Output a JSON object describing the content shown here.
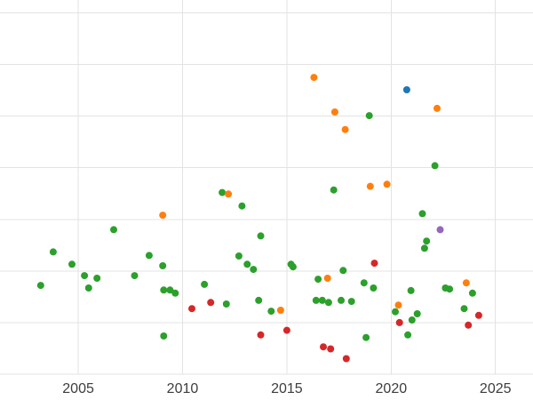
{
  "chart_data": {
    "type": "scatter",
    "title": "",
    "xlabel": "",
    "ylabel": "",
    "xlim": [
      2001.25,
      2026.8
    ],
    "ylim": [
      -0.5,
      7.25
    ],
    "xticks": [
      {
        "value": 2005,
        "label": "2005"
      },
      {
        "value": 2010,
        "label": "2010"
      },
      {
        "value": 2015,
        "label": "2015"
      },
      {
        "value": 2020,
        "label": "2020"
      },
      {
        "value": 2025,
        "label": "2025"
      }
    ],
    "ygrid": [
      0,
      1,
      2,
      3,
      4,
      5,
      6,
      7
    ],
    "grid": true,
    "grid_color": "#e3e3e3",
    "tick_color": "#3d3d3d",
    "tick_font_size": 16,
    "marker_radius": 4,
    "legend_position": "none",
    "series": [
      {
        "name": "green",
        "color": "#2ca02c",
        "points": [
          [
            2003.2,
            1.72
          ],
          [
            2003.8,
            2.37
          ],
          [
            2004.7,
            2.13
          ],
          [
            2005.3,
            1.91
          ],
          [
            2005.5,
            1.67
          ],
          [
            2005.9,
            1.86
          ],
          [
            2006.7,
            2.8
          ],
          [
            2007.7,
            1.91
          ],
          [
            2008.4,
            2.3
          ],
          [
            2009.05,
            2.1
          ],
          [
            2009.1,
            1.63
          ],
          [
            2009.4,
            1.63
          ],
          [
            2009.65,
            1.57
          ],
          [
            2009.1,
            0.74
          ],
          [
            2011.05,
            1.74
          ],
          [
            2011.9,
            3.52
          ],
          [
            2012.1,
            1.36
          ],
          [
            2012.7,
            2.29
          ],
          [
            2012.85,
            3.26
          ],
          [
            2013.1,
            2.13
          ],
          [
            2013.4,
            2.03
          ],
          [
            2013.65,
            1.43
          ],
          [
            2013.75,
            2.68
          ],
          [
            2014.25,
            1.22
          ],
          [
            2015.2,
            2.13
          ],
          [
            2015.3,
            2.08
          ],
          [
            2016.4,
            1.43
          ],
          [
            2016.5,
            1.84
          ],
          [
            2016.7,
            1.43
          ],
          [
            2017.0,
            1.39
          ],
          [
            2017.25,
            3.57
          ],
          [
            2017.6,
            1.43
          ],
          [
            2017.7,
            2.01
          ],
          [
            2018.1,
            1.41
          ],
          [
            2018.7,
            1.77
          ],
          [
            2018.8,
            0.71
          ],
          [
            2018.95,
            5.01
          ],
          [
            2019.15,
            1.67
          ],
          [
            2020.2,
            1.21
          ],
          [
            2020.8,
            0.76
          ],
          [
            2020.95,
            1.62
          ],
          [
            2021.0,
            1.05
          ],
          [
            2021.25,
            1.17
          ],
          [
            2021.5,
            3.11
          ],
          [
            2021.6,
            2.44
          ],
          [
            2021.7,
            2.58
          ],
          [
            2022.1,
            4.04
          ],
          [
            2022.6,
            1.67
          ],
          [
            2022.8,
            1.65
          ],
          [
            2023.5,
            1.27
          ],
          [
            2023.9,
            1.57
          ]
        ]
      },
      {
        "name": "orange",
        "color": "#ff7f0e",
        "points": [
          [
            2009.05,
            3.08
          ],
          [
            2012.2,
            3.49
          ],
          [
            2014.7,
            1.24
          ],
          [
            2016.3,
            5.75
          ],
          [
            2016.95,
            1.86
          ],
          [
            2017.3,
            5.08
          ],
          [
            2017.8,
            4.74
          ],
          [
            2019.0,
            3.64
          ],
          [
            2019.8,
            3.68
          ],
          [
            2020.35,
            1.34
          ],
          [
            2022.2,
            5.15
          ],
          [
            2023.6,
            1.77
          ]
        ]
      },
      {
        "name": "red",
        "color": "#d62728",
        "points": [
          [
            2010.45,
            1.27
          ],
          [
            2011.35,
            1.39
          ],
          [
            2013.75,
            0.76
          ],
          [
            2015.0,
            0.85
          ],
          [
            2016.75,
            0.53
          ],
          [
            2017.1,
            0.49
          ],
          [
            2017.85,
            0.3
          ],
          [
            2019.2,
            2.15
          ],
          [
            2020.4,
            1.0
          ],
          [
            2023.7,
            0.95
          ],
          [
            2024.2,
            1.14
          ]
        ]
      },
      {
        "name": "blue",
        "color": "#1f77b4",
        "points": [
          [
            2020.75,
            5.51
          ]
        ]
      },
      {
        "name": "purple",
        "color": "#9467bd",
        "points": [
          [
            2022.35,
            2.8
          ]
        ]
      }
    ]
  }
}
